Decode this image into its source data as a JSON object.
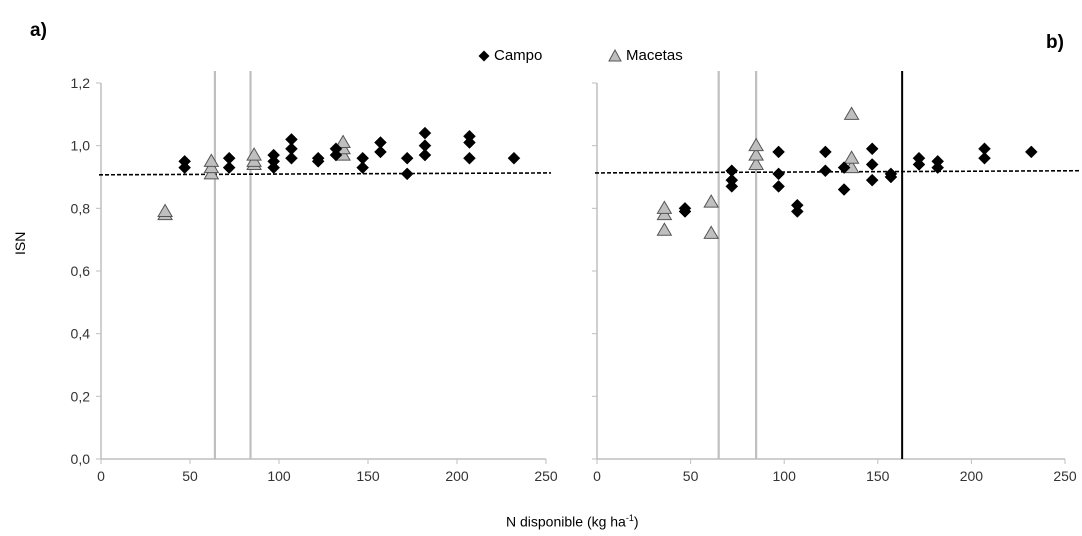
{
  "figure": {
    "panels": [
      "a)",
      "b)"
    ],
    "xlabel_main": "N disponible (kg ha",
    "xlabel_sup": "-1",
    "xlabel_tail": ")",
    "ylabel": "ISN"
  },
  "legend": {
    "items": [
      {
        "marker": "diamond",
        "label": "Campo"
      },
      {
        "marker": "triangle",
        "label": "Macetas"
      }
    ]
  },
  "colors": {
    "campo": "#000000",
    "macetas_fill": "#bfbfbf",
    "macetas_stroke": "#555555",
    "vline_gray": "#bfbfbf",
    "vline_black": "#000000",
    "reference": "#000000",
    "axis": "#bfbfbf"
  },
  "chart_data": [
    {
      "type": "scatter",
      "panel": "a)",
      "xlim": [
        0,
        250
      ],
      "ylim": [
        0,
        1.2
      ],
      "xticks": [
        "0",
        "50",
        "100",
        "150",
        "200",
        "250"
      ],
      "yticks": [
        "0,0",
        "0,2",
        "0,4",
        "0,6",
        "0,8",
        "1,0",
        "1,2"
      ],
      "grid": false,
      "legend_position": "top-center",
      "reference_line": {
        "style": "dashed",
        "from": [
          0,
          0.907
        ],
        "to": [
          250,
          0.913
        ]
      },
      "vertical_lines": [
        {
          "x": 64,
          "color": "gray"
        },
        {
          "x": 84,
          "color": "gray"
        }
      ],
      "series": [
        {
          "name": "Campo",
          "marker": "diamond",
          "points": [
            [
              47,
              0.93
            ],
            [
              47,
              0.95
            ],
            [
              72,
              0.93
            ],
            [
              72,
              0.96
            ],
            [
              97,
              0.93
            ],
            [
              97,
              0.95
            ],
            [
              97,
              0.97
            ],
            [
              107,
              0.96
            ],
            [
              107,
              0.99
            ],
            [
              107,
              1.02
            ],
            [
              122,
              0.95
            ],
            [
              122,
              0.96
            ],
            [
              132,
              0.97
            ],
            [
              132,
              0.99
            ],
            [
              147,
              0.93
            ],
            [
              147,
              0.96
            ],
            [
              157,
              0.98
            ],
            [
              157,
              1.01
            ],
            [
              172,
              0.91
            ],
            [
              172,
              0.96
            ],
            [
              182,
              0.97
            ],
            [
              182,
              1.0
            ],
            [
              182,
              1.04
            ],
            [
              207,
              0.96
            ],
            [
              207,
              1.01
            ],
            [
              207,
              1.03
            ],
            [
              232,
              0.96
            ]
          ]
        },
        {
          "name": "Macetas",
          "marker": "triangle",
          "points": [
            [
              36,
              0.78
            ],
            [
              36,
              0.79
            ],
            [
              62,
              0.91
            ],
            [
              62,
              0.93
            ],
            [
              62,
              0.95
            ],
            [
              86,
              0.94
            ],
            [
              86,
              0.95
            ],
            [
              86,
              0.97
            ],
            [
              136,
              0.97
            ],
            [
              136,
              0.99
            ],
            [
              136,
              1.01
            ]
          ]
        }
      ]
    },
    {
      "type": "scatter",
      "panel": "b)",
      "xlim": [
        0,
        250
      ],
      "ylim": [
        0,
        1.2
      ],
      "xticks": [
        "0",
        "50",
        "100",
        "150",
        "200",
        "250"
      ],
      "grid": false,
      "reference_line": {
        "style": "dashed",
        "from": [
          0,
          0.913
        ],
        "to": [
          250,
          0.92
        ]
      },
      "vertical_lines": [
        {
          "x": 65,
          "color": "gray"
        },
        {
          "x": 85,
          "color": "gray"
        },
        {
          "x": 163,
          "color": "black"
        }
      ],
      "series": [
        {
          "name": "Campo",
          "marker": "diamond",
          "points": [
            [
              47,
              0.79
            ],
            [
              47,
              0.8
            ],
            [
              72,
              0.87
            ],
            [
              72,
              0.89
            ],
            [
              72,
              0.92
            ],
            [
              97,
              0.87
            ],
            [
              97,
              0.91
            ],
            [
              97,
              0.98
            ],
            [
              107,
              0.79
            ],
            [
              107,
              0.81
            ],
            [
              122,
              0.92
            ],
            [
              122,
              0.98
            ],
            [
              132,
              0.86
            ],
            [
              132,
              0.93
            ],
            [
              147,
              0.89
            ],
            [
              147,
              0.94
            ],
            [
              147,
              0.99
            ],
            [
              157,
              0.9
            ],
            [
              157,
              0.91
            ],
            [
              172,
              0.94
            ],
            [
              172,
              0.96
            ],
            [
              182,
              0.93
            ],
            [
              182,
              0.95
            ],
            [
              207,
              0.96
            ],
            [
              207,
              0.99
            ],
            [
              232,
              0.98
            ]
          ]
        },
        {
          "name": "Macetas",
          "marker": "triangle",
          "points": [
            [
              36,
              0.73
            ],
            [
              36,
              0.78
            ],
            [
              36,
              0.8
            ],
            [
              61,
              0.72
            ],
            [
              61,
              0.82
            ],
            [
              85,
              0.94
            ],
            [
              85,
              0.97
            ],
            [
              85,
              1.0
            ],
            [
              136,
              0.93
            ],
            [
              136,
              0.96
            ],
            [
              136,
              1.1
            ]
          ]
        }
      ]
    }
  ]
}
